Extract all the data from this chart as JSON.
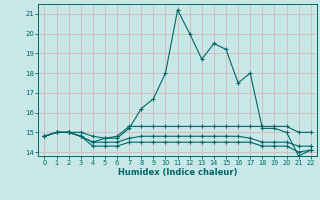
{
  "xlabel": "Humidex (Indice chaleur)",
  "background_color": "#c8e8e8",
  "grid_color": "#d4b8b8",
  "line_color": "#006666",
  "xlim": [
    -0.5,
    22.5
  ],
  "ylim": [
    13.8,
    21.5
  ],
  "yticks": [
    14,
    15,
    16,
    17,
    18,
    19,
    20,
    21
  ],
  "xticks": [
    0,
    1,
    2,
    3,
    4,
    5,
    6,
    7,
    8,
    9,
    10,
    11,
    12,
    13,
    14,
    15,
    16,
    17,
    18,
    19,
    20,
    21,
    22
  ],
  "series": [
    [
      14.8,
      15.0,
      15.0,
      15.0,
      14.8,
      14.7,
      14.7,
      15.2,
      16.2,
      16.7,
      18.0,
      21.2,
      20.0,
      18.7,
      19.5,
      19.2,
      17.5,
      18.0,
      15.2,
      15.2,
      15.0,
      13.8,
      14.1
    ],
    [
      14.8,
      15.0,
      15.0,
      14.8,
      14.5,
      14.7,
      14.8,
      15.3,
      15.3,
      15.3,
      15.3,
      15.3,
      15.3,
      15.3,
      15.3,
      15.3,
      15.3,
      15.3,
      15.3,
      15.3,
      15.3,
      15.0,
      15.0
    ],
    [
      14.8,
      15.0,
      15.0,
      14.8,
      14.5,
      14.5,
      14.5,
      14.7,
      14.8,
      14.8,
      14.8,
      14.8,
      14.8,
      14.8,
      14.8,
      14.8,
      14.8,
      14.7,
      14.5,
      14.5,
      14.5,
      14.3,
      14.3
    ],
    [
      14.8,
      15.0,
      15.0,
      14.8,
      14.3,
      14.3,
      14.3,
      14.5,
      14.5,
      14.5,
      14.5,
      14.5,
      14.5,
      14.5,
      14.5,
      14.5,
      14.5,
      14.5,
      14.3,
      14.3,
      14.3,
      14.0,
      14.1
    ]
  ]
}
